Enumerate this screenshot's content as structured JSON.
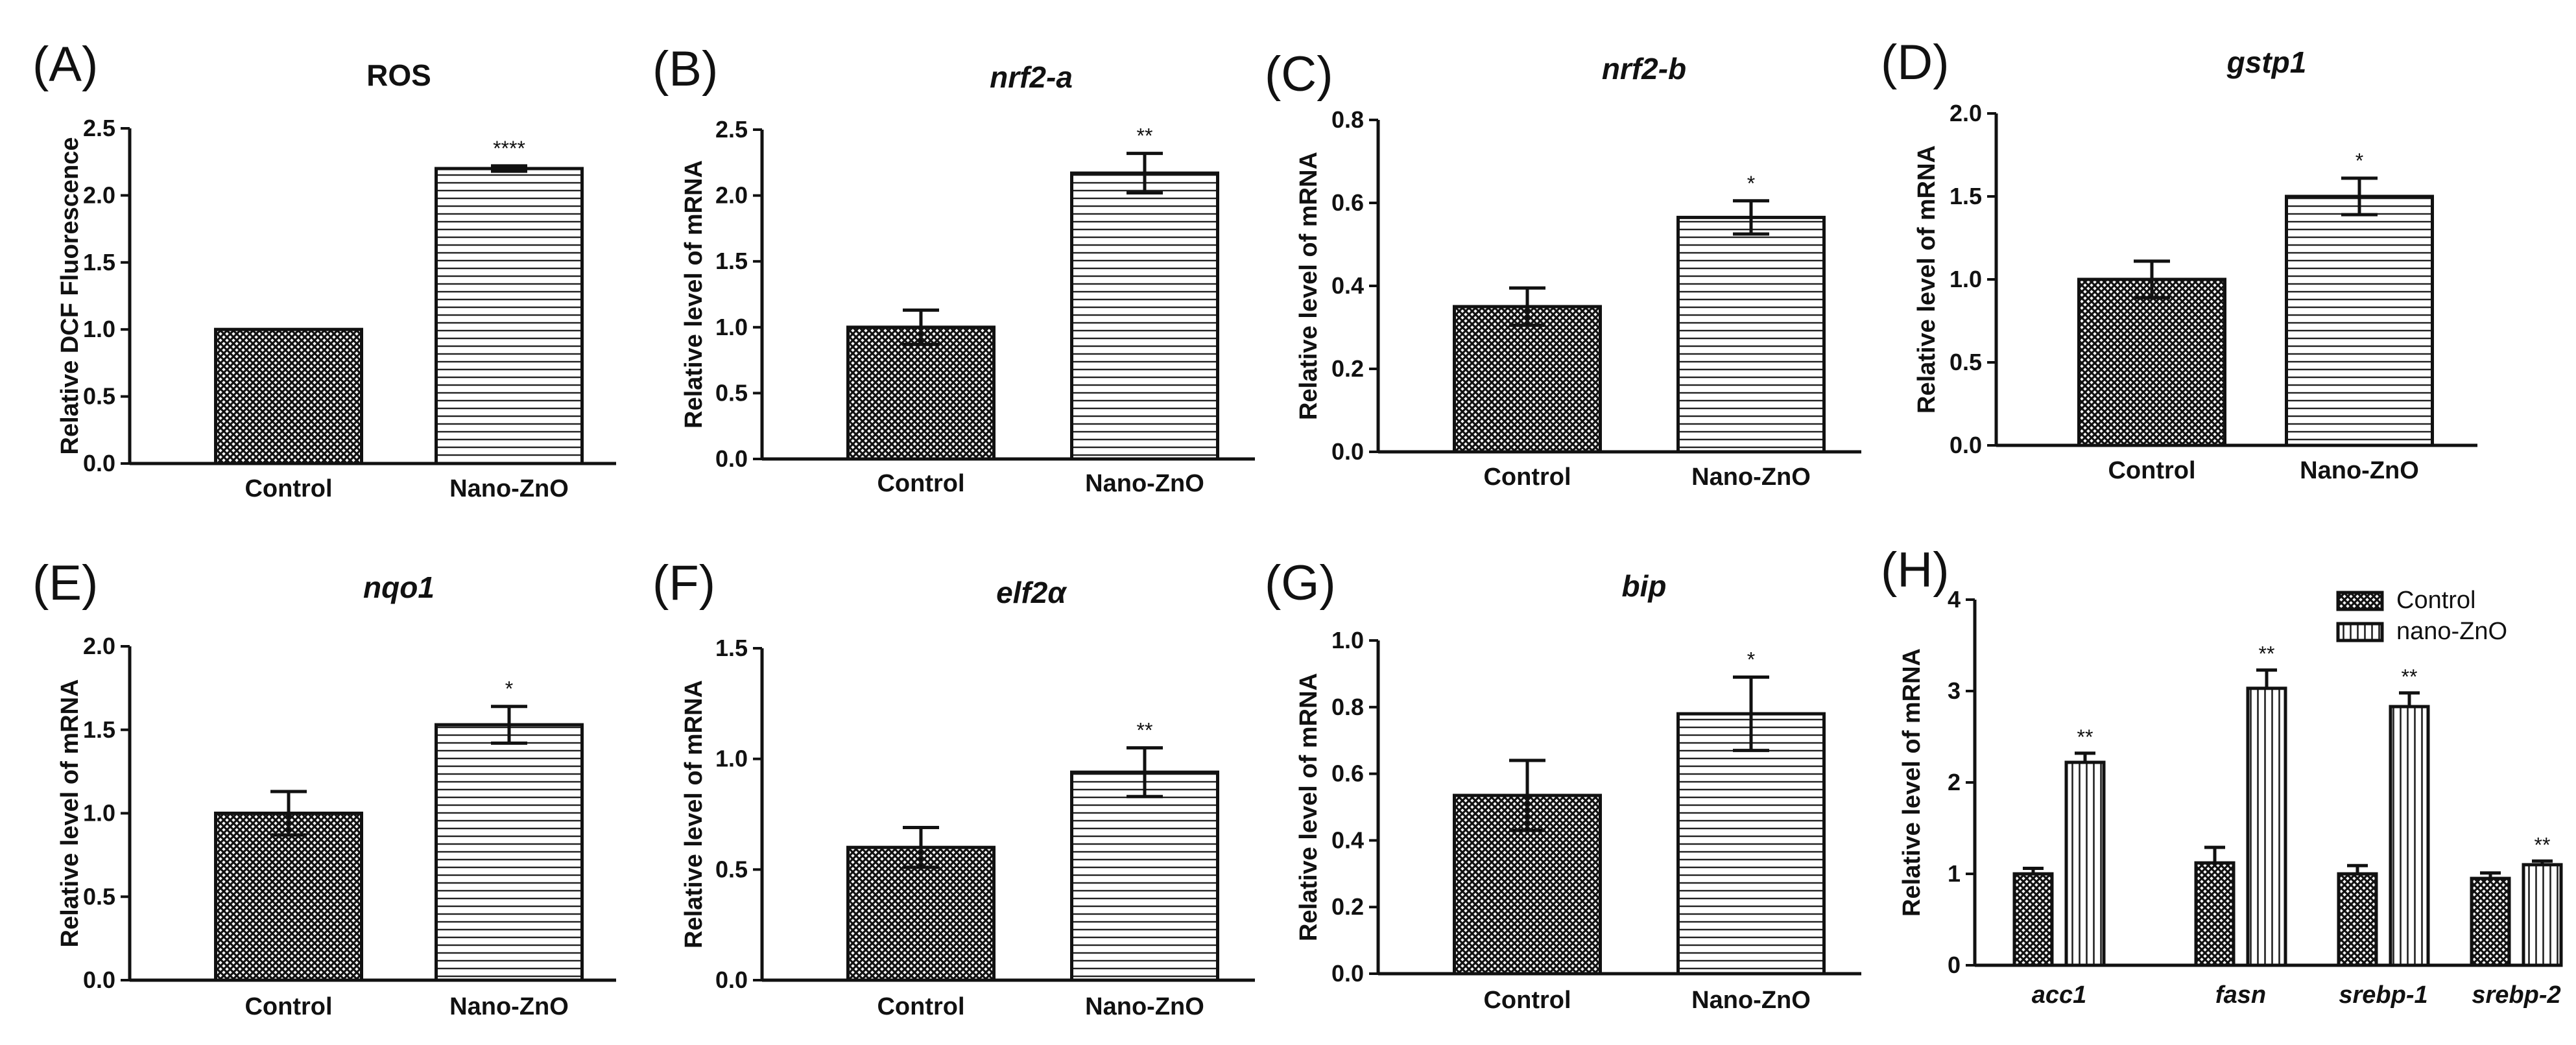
{
  "chart_data": [
    {
      "panel": "(A)",
      "type": "bar",
      "title": "ROS",
      "title_italic": false,
      "ylabel": "Relative DCF Fluorescence",
      "categories": [
        "Control",
        "Nano-ZnO"
      ],
      "values": [
        1.0,
        2.2
      ],
      "errors": [
        0.0,
        0.02
      ],
      "significance": [
        "",
        "****"
      ],
      "ylim": [
        0,
        2.5
      ],
      "yticks": [
        "0.0",
        "0.5",
        "1.0",
        "1.5",
        "2.0",
        "2.5"
      ],
      "tick_step": 0.5,
      "patterns": [
        "crosshatch",
        "horizontal"
      ]
    },
    {
      "panel": "(B)",
      "type": "bar",
      "title": "nrf2-a",
      "title_italic": true,
      "ylabel": "Relative level of mRNA",
      "categories": [
        "Control",
        "Nano-ZnO"
      ],
      "values": [
        1.0,
        2.17
      ],
      "errors": [
        0.13,
        0.15
      ],
      "significance": [
        "",
        "**"
      ],
      "ylim": [
        0,
        2.5
      ],
      "yticks": [
        "0.0",
        "0.5",
        "1.0",
        "1.5",
        "2.0",
        "2.5"
      ],
      "tick_step": 0.5,
      "patterns": [
        "crosshatch",
        "horizontal"
      ]
    },
    {
      "panel": "(C)",
      "type": "bar",
      "title": "nrf2-b",
      "title_italic": true,
      "ylabel": "Relative level of mRNA",
      "categories": [
        "Control",
        "Nano-ZnO"
      ],
      "values": [
        0.35,
        0.565
      ],
      "errors": [
        0.045,
        0.04
      ],
      "significance": [
        "",
        "*"
      ],
      "ylim": [
        0,
        0.8
      ],
      "yticks": [
        "0.0",
        "0.2",
        "0.4",
        "0.6",
        "0.8"
      ],
      "tick_step": 0.2,
      "patterns": [
        "crosshatch",
        "horizontal"
      ]
    },
    {
      "panel": "(D)",
      "type": "bar",
      "title": "gstp1",
      "title_italic": true,
      "ylabel": "Relative level of mRNA",
      "categories": [
        "Control",
        "Nano-ZnO"
      ],
      "values": [
        1.0,
        1.5
      ],
      "errors": [
        0.11,
        0.11
      ],
      "significance": [
        "",
        "*"
      ],
      "ylim": [
        0,
        2.0
      ],
      "yticks": [
        "0.0",
        "0.5",
        "1.0",
        "1.5",
        "2.0"
      ],
      "tick_step": 0.5,
      "patterns": [
        "crosshatch",
        "horizontal"
      ]
    },
    {
      "panel": "(E)",
      "type": "bar",
      "title": "nqo1",
      "title_italic": true,
      "ylabel": "Relative level of mRNA",
      "categories": [
        "Control",
        "Nano-ZnO"
      ],
      "values": [
        1.0,
        1.53
      ],
      "errors": [
        0.13,
        0.11
      ],
      "significance": [
        "",
        "*"
      ],
      "ylim": [
        0,
        2.0
      ],
      "yticks": [
        "0.0",
        "0.5",
        "1.0",
        "1.5",
        "2.0"
      ],
      "tick_step": 0.5,
      "patterns": [
        "crosshatch",
        "horizontal"
      ]
    },
    {
      "panel": "(F)",
      "type": "bar",
      "title": "elf2α",
      "title_italic": true,
      "ylabel": "Relative level of mRNA",
      "categories": [
        "Control",
        "Nano-ZnO"
      ],
      "values": [
        0.6,
        0.94
      ],
      "errors": [
        0.09,
        0.11
      ],
      "significance": [
        "",
        "**"
      ],
      "ylim": [
        0,
        1.5
      ],
      "yticks": [
        "0.0",
        "0.5",
        "1.0",
        "1.5"
      ],
      "tick_step": 0.5,
      "patterns": [
        "crosshatch",
        "horizontal"
      ]
    },
    {
      "panel": "(G)",
      "type": "bar",
      "title": "bip",
      "title_italic": true,
      "ylabel": "Relative level of mRNA",
      "categories": [
        "Control",
        "Nano-ZnO"
      ],
      "values": [
        0.535,
        0.78
      ],
      "errors": [
        0.105,
        0.11
      ],
      "significance": [
        "",
        "*"
      ],
      "ylim": [
        0,
        1.0
      ],
      "yticks": [
        "0.0",
        "0.2",
        "0.4",
        "0.6",
        "0.8",
        "1.0"
      ],
      "tick_step": 0.2,
      "patterns": [
        "crosshatch",
        "horizontal"
      ]
    },
    {
      "panel": "(H)",
      "type": "bar",
      "title": "",
      "title_italic": false,
      "ylabel": "Relative level of mRNA",
      "categories": [
        "acc1",
        "fasn",
        "srebp-1",
        "srebp-2"
      ],
      "categories_italic": true,
      "series": [
        {
          "name": "Control",
          "values": [
            1.0,
            1.12,
            1.0,
            0.95
          ],
          "errors": [
            0.06,
            0.17,
            0.09,
            0.06
          ],
          "significance": [
            "",
            "",
            "",
            ""
          ],
          "pattern": "crosshatch"
        },
        {
          "name": "nano-ZnO",
          "values": [
            2.22,
            3.03,
            2.83,
            1.1
          ],
          "errors": [
            0.1,
            0.2,
            0.15,
            0.04
          ],
          "significance": [
            "**",
            "**",
            "**",
            "**"
          ],
          "pattern": "vertical"
        }
      ],
      "ylim": [
        0,
        4
      ],
      "yticks": [
        "0",
        "1",
        "2",
        "3",
        "4"
      ],
      "tick_step": 1,
      "legend": "top-right"
    }
  ]
}
